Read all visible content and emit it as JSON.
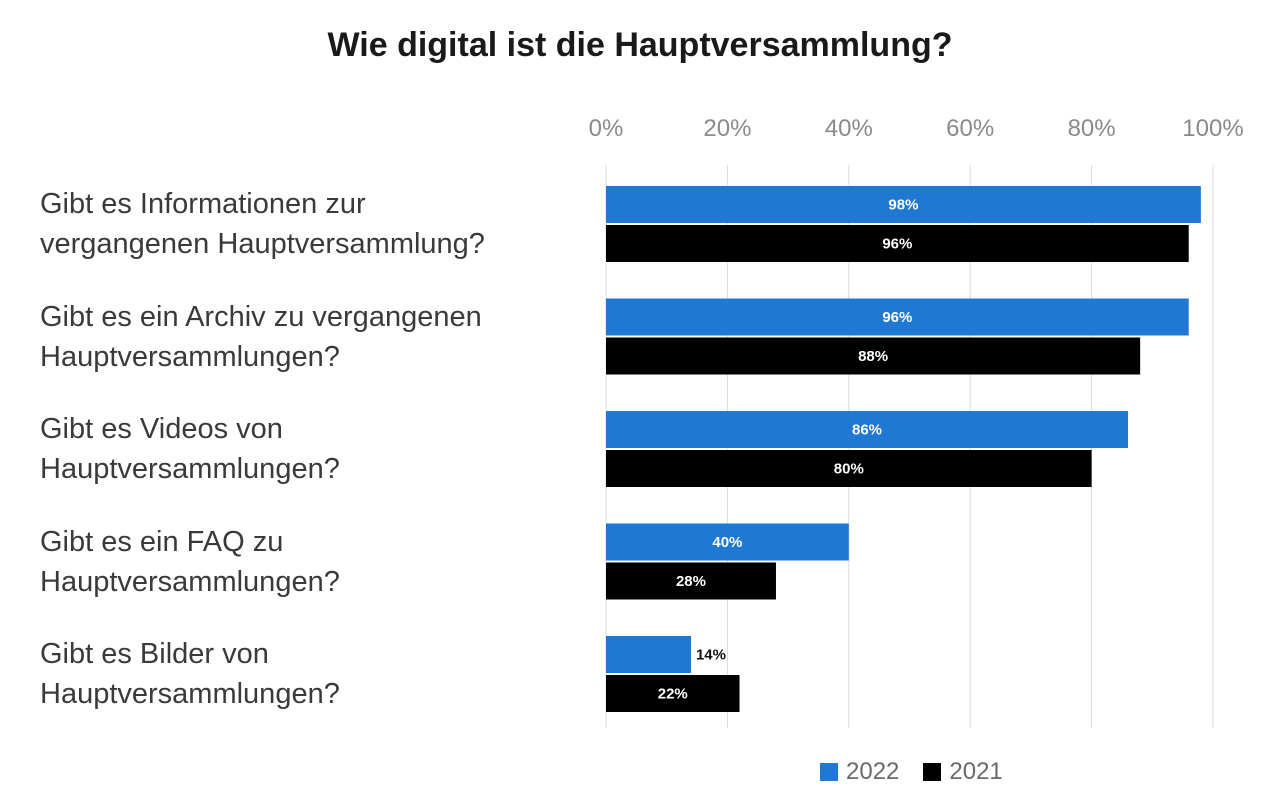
{
  "chart_data": {
    "type": "bar",
    "orientation": "horizontal",
    "title": "Wie digital ist die Hauptversammlung?",
    "xlabel": "",
    "ylabel": "",
    "xlim": [
      0,
      100
    ],
    "ticks": [
      0,
      20,
      40,
      60,
      80,
      100
    ],
    "tick_labels": [
      "0%",
      "20%",
      "40%",
      "60%",
      "80%",
      "100%"
    ],
    "grid": true,
    "legend": "bottom-right",
    "categories": [
      "Gibt es Informationen zur vergangenen Hauptversammlung?",
      "Gibt es ein Archiv zu vergangenen Hauptversammlungen?",
      "Gibt es Videos von Hauptversammlungen?",
      "Gibt es ein FAQ zu Hauptversammlungen?",
      "Gibt es Bilder von Hauptversammlungen?"
    ],
    "category_lines": [
      [
        "Gibt es Informationen zur",
        "vergangenen Hauptversammlung?"
      ],
      [
        "Gibt es ein Archiv zu vergangenen",
        "Hauptversammlungen?"
      ],
      [
        "Gibt es Videos von",
        "Hauptversammlungen?"
      ],
      [
        "Gibt es ein FAQ zu",
        "Hauptversammlungen?"
      ],
      [
        "Gibt es Bilder von",
        "Hauptversammlungen?"
      ]
    ],
    "series": [
      {
        "name": "2022",
        "color": "#1f78d1",
        "values": [
          98,
          96,
          86,
          40,
          14
        ],
        "labels": [
          "98%",
          "96%",
          "86%",
          "40%",
          "14%"
        ]
      },
      {
        "name": "2021",
        "color": "#000000",
        "values": [
          96,
          88,
          80,
          28,
          22
        ],
        "labels": [
          "96%",
          "88%",
          "80%",
          "28%",
          "22%"
        ]
      }
    ]
  }
}
